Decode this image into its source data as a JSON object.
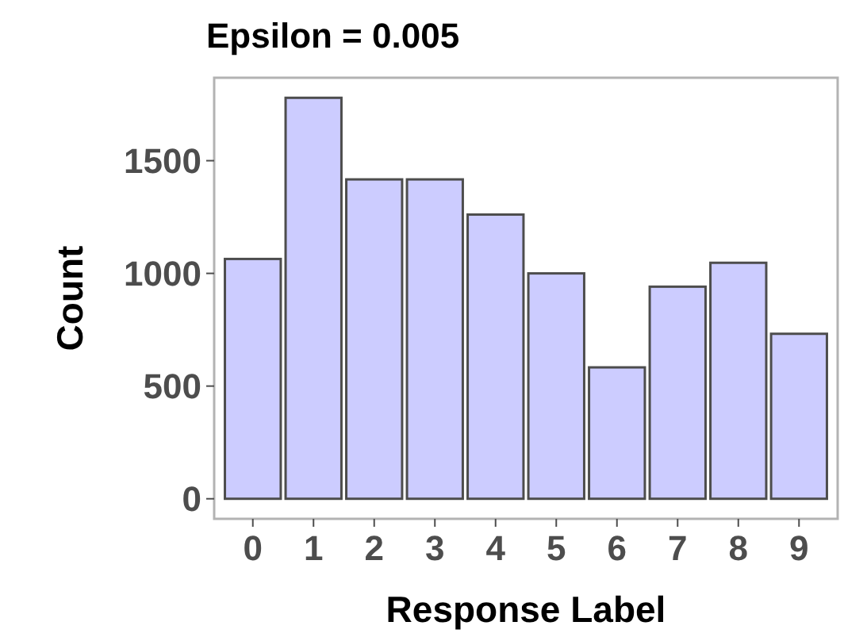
{
  "chart_data": {
    "type": "bar",
    "title": "Epsilon = 0.005",
    "xlabel": "Response Label",
    "ylabel": "Count",
    "categories": [
      "0",
      "1",
      "2",
      "3",
      "4",
      "5",
      "6",
      "7",
      "8",
      "9"
    ],
    "values": [
      1064,
      1779,
      1417,
      1417,
      1261,
      1000,
      583,
      941,
      1047,
      732
    ],
    "color": "#ccccff",
    "ylim": [
      -89,
      1868
    ],
    "yticks": [
      0,
      500,
      1000,
      1500
    ],
    "grid": false
  }
}
